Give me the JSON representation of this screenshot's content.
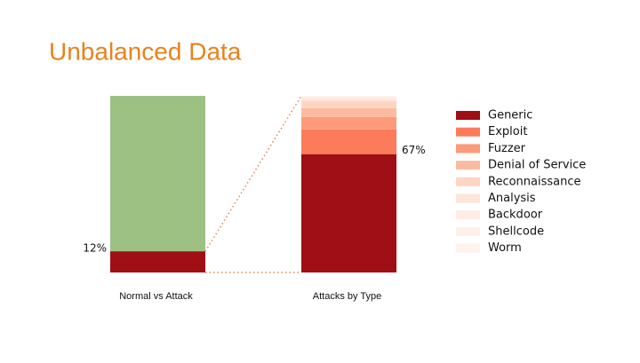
{
  "title": "Unbalanced Data",
  "chart_data": [
    {
      "type": "stacked_bar",
      "xlabel": "Normal vs Attack",
      "ylim": [
        0,
        100
      ],
      "series": [
        {
          "color": "#a00e16",
          "values": [
            12
          ],
          "value_labels": [
            "12%"
          ]
        },
        {
          "color": "#9dc183",
          "values": [
            88
          ]
        }
      ]
    },
    {
      "type": "stacked_bar",
      "xlabel": "Attacks by Type",
      "ylim": [
        0,
        100
      ],
      "legend": "right",
      "series": [
        {
          "name": "Generic",
          "color": "#a00e16",
          "values": [
            67
          ],
          "value_labels": [
            "67%"
          ]
        },
        {
          "name": "Exploit",
          "color": "#fb7b5b",
          "values": [
            14
          ]
        },
        {
          "name": "Fuzzer",
          "color": "#fc9a7a",
          "values": [
            7
          ]
        },
        {
          "name": "Denial of Service",
          "color": "#fcbba1",
          "values": [
            5
          ]
        },
        {
          "name": "Reconnaissance",
          "color": "#fdd5c3",
          "values": [
            4
          ]
        },
        {
          "name": "Analysis",
          "color": "#fee5d9",
          "values": [
            1
          ]
        },
        {
          "name": "Backdoor",
          "color": "#feece5",
          "values": [
            1
          ]
        },
        {
          "name": "Shellcode",
          "color": "#fff0ea",
          "values": [
            0.5
          ]
        },
        {
          "name": "Worm",
          "color": "#fff3ee",
          "values": [
            0.5
          ]
        }
      ]
    }
  ]
}
